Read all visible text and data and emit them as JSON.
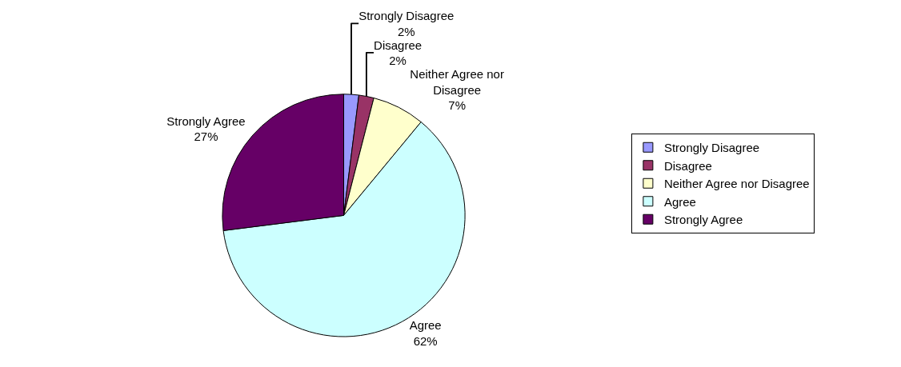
{
  "chart_data": {
    "type": "pie",
    "categories": [
      "Strongly Disagree",
      "Disagree",
      "Neither Agree nor Disagree",
      "Agree",
      "Strongly Agree"
    ],
    "values": [
      2,
      2,
      7,
      62,
      27
    ],
    "value_labels": [
      "2%",
      "2%",
      "7%",
      "62%",
      "27%"
    ],
    "colors": [
      "#9999ff",
      "#993366",
      "#ffffcc",
      "#ccffff",
      "#660066"
    ],
    "data_labels": true,
    "legend": "right"
  }
}
